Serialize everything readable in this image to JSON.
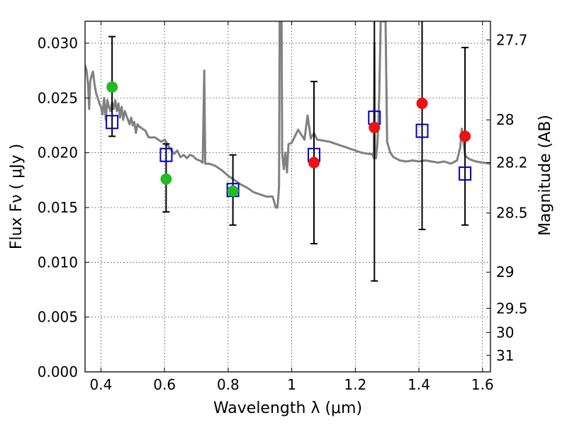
{
  "chart_data": {
    "type": "scatter",
    "xlabel": "Wavelength  λ (μm)",
    "ylabel": "Flux  Fν  ( μJy )",
    "y2label": "Magnitude (AB)",
    "xlim": [
      0.35,
      1.625
    ],
    "ylim": [
      0.0,
      0.032
    ],
    "grid": true,
    "x_ticks": [
      0.4,
      0.6,
      0.8,
      1.0,
      1.2,
      1.4,
      1.6
    ],
    "x_tick_labels": [
      "0.4",
      "0.6",
      "0.8",
      "1",
      "1.2",
      "1.4",
      "1.6"
    ],
    "y_ticks": [
      0.0,
      0.005,
      0.01,
      0.015,
      0.02,
      0.025,
      0.03
    ],
    "y_tick_labels": [
      "0.000",
      "0.005",
      "0.010",
      "0.015",
      "0.020",
      "0.025",
      "0.030"
    ],
    "y2_ticks": [
      {
        "label": "27.7",
        "flux": 0.0303
      },
      {
        "label": "28",
        "flux": 0.023
      },
      {
        "label": "28.2",
        "flux": 0.0191
      },
      {
        "label": "28.5",
        "flux": 0.0145
      },
      {
        "label": "29",
        "flux": 0.0091
      },
      {
        "label": "29.5",
        "flux": 0.0058
      },
      {
        "label": "30",
        "flux": 0.0036
      },
      {
        "label": "31",
        "flux": 0.0015
      }
    ],
    "series": [
      {
        "kind": "line",
        "color": "#808080",
        "x": [
          0.35,
          0.355,
          0.36,
          0.363,
          0.366,
          0.37,
          0.375,
          0.38,
          0.385,
          0.39,
          0.395,
          0.4,
          0.405,
          0.41,
          0.415,
          0.42,
          0.425,
          0.43,
          0.435,
          0.44,
          0.445,
          0.45,
          0.455,
          0.46,
          0.465,
          0.47,
          0.475,
          0.48,
          0.485,
          0.49,
          0.495,
          0.5,
          0.505,
          0.51,
          0.515,
          0.52,
          0.53,
          0.54,
          0.55,
          0.56,
          0.57,
          0.58,
          0.59,
          0.6,
          0.605,
          0.61,
          0.62,
          0.63,
          0.64,
          0.65,
          0.66,
          0.67,
          0.68,
          0.69,
          0.7,
          0.71,
          0.72,
          0.725,
          0.728,
          0.731,
          0.735,
          0.74,
          0.75,
          0.76,
          0.78,
          0.8,
          0.82,
          0.84,
          0.86,
          0.88,
          0.9,
          0.92,
          0.94,
          0.95,
          0.955,
          0.958,
          0.96,
          0.962,
          0.964,
          0.966,
          0.968,
          0.97,
          0.975,
          0.98,
          0.985,
          0.99,
          1.0,
          1.02,
          1.04,
          1.05,
          1.06,
          1.07,
          1.08,
          1.1,
          1.12,
          1.14,
          1.16,
          1.18,
          1.2,
          1.22,
          1.24,
          1.25,
          1.255,
          1.258,
          1.26,
          1.262,
          1.265,
          1.27,
          1.275,
          1.28,
          1.285,
          1.29,
          1.295,
          1.3,
          1.31,
          1.32,
          1.34,
          1.36,
          1.38,
          1.4,
          1.42,
          1.44,
          1.46,
          1.48,
          1.5,
          1.52,
          1.53,
          1.535,
          1.54,
          1.545,
          1.55,
          1.56,
          1.58,
          1.6,
          1.625
        ],
        "y": [
          0.028,
          0.0275,
          0.026,
          0.024,
          0.0265,
          0.027,
          0.0274,
          0.0262,
          0.0254,
          0.025,
          0.0245,
          0.0242,
          0.0235,
          0.025,
          0.023,
          0.0248,
          0.0242,
          0.0238,
          0.0246,
          0.024,
          0.0248,
          0.0238,
          0.0245,
          0.0232,
          0.0242,
          0.023,
          0.0238,
          0.0234,
          0.023,
          0.0226,
          0.0232,
          0.0225,
          0.0228,
          0.0218,
          0.0226,
          0.0224,
          0.0222,
          0.022,
          0.0214,
          0.0214,
          0.0214,
          0.0212,
          0.021,
          0.0212,
          0.021,
          0.0207,
          0.0203,
          0.0199,
          0.0202,
          0.0196,
          0.0198,
          0.0195,
          0.0198,
          0.0197,
          0.0194,
          0.0193,
          0.0191,
          0.0275,
          0.019,
          0.019,
          0.019,
          0.019,
          0.0189,
          0.0188,
          0.0184,
          0.0179,
          0.0175,
          0.0171,
          0.0168,
          0.0164,
          0.0162,
          0.016,
          0.016,
          0.015,
          0.015,
          0.016,
          0.017,
          0.032,
          0.032,
          0.032,
          0.032,
          0.02,
          0.0185,
          0.02,
          0.0182,
          0.0208,
          0.0209,
          0.0221,
          0.0212,
          0.0234,
          0.0213,
          0.0218,
          0.0212,
          0.0211,
          0.021,
          0.0208,
          0.0206,
          0.0204,
          0.0202,
          0.02,
          0.0199,
          0.0199,
          0.0198,
          0.0195,
          0.03,
          0.0195,
          0.0195,
          0.021,
          0.025,
          0.032,
          0.032,
          0.032,
          0.032,
          0.021,
          0.02,
          0.0196,
          0.0193,
          0.0192,
          0.0193,
          0.0192,
          0.0193,
          0.0192,
          0.0191,
          0.0192,
          0.019,
          0.0193,
          0.0205,
          0.0222,
          0.021,
          0.0198,
          0.0196,
          0.0194,
          0.0192,
          0.0191,
          0.019
        ]
      },
      {
        "kind": "errorbar",
        "color": "#000000",
        "x": [
          0.435,
          0.605,
          0.815,
          1.07,
          1.26,
          1.41,
          1.545
        ],
        "lower": [
          0.0215,
          0.0146,
          0.0134,
          0.0117,
          0.0083,
          0.013,
          0.0134
        ],
        "upper": [
          0.0306,
          0.0208,
          0.0198,
          0.0265,
          0.0323,
          0.0323,
          0.0296
        ]
      },
      {
        "kind": "square",
        "color": "#0000cc",
        "x": [
          0.435,
          0.605,
          0.815,
          1.07,
          1.26,
          1.41,
          1.545
        ],
        "y": [
          0.0228,
          0.0198,
          0.0166,
          0.0198,
          0.0232,
          0.022,
          0.0181
        ]
      },
      {
        "kind": "circle",
        "color": "#22bb22",
        "x": [
          0.435,
          0.605,
          0.815
        ],
        "y": [
          0.026,
          0.0176,
          0.0165
        ]
      },
      {
        "kind": "circle",
        "color": "#ee1111",
        "x": [
          1.07,
          1.26,
          1.41,
          1.545
        ],
        "y": [
          0.0191,
          0.0223,
          0.0245,
          0.0215
        ]
      }
    ]
  }
}
